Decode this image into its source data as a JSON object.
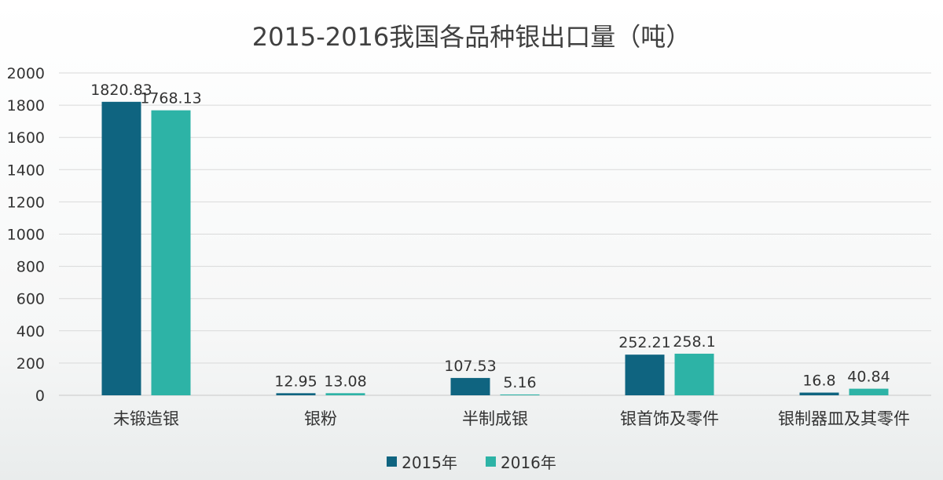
{
  "chart_data": {
    "type": "bar",
    "title": "2015-2016我国各品种银出口量（吨）",
    "categories": [
      "未锻造银",
      "银粉",
      "半制成银",
      "银首饰及零件",
      "银制器皿及其零件"
    ],
    "series": [
      {
        "name": "2015年",
        "color": "#0f6480",
        "values": [
          1820.83,
          12.95,
          107.53,
          252.21,
          16.8
        ],
        "labels": [
          "1820.83",
          "12.95",
          "107.53",
          "252.21",
          "16.8"
        ]
      },
      {
        "name": "2016年",
        "color": "#2db3a6",
        "values": [
          1768.13,
          13.08,
          5.16,
          258.1,
          40.84
        ],
        "labels": [
          "1768.13",
          "13.08",
          "5.16",
          "258.1",
          "40.84"
        ]
      }
    ],
    "ylim": [
      0,
      2000
    ],
    "yticks": [
      "0",
      "200",
      "400",
      "600",
      "800",
      "1000",
      "1200",
      "1400",
      "1600",
      "1800",
      "2000"
    ],
    "grid": true,
    "legend_position": "bottom"
  }
}
